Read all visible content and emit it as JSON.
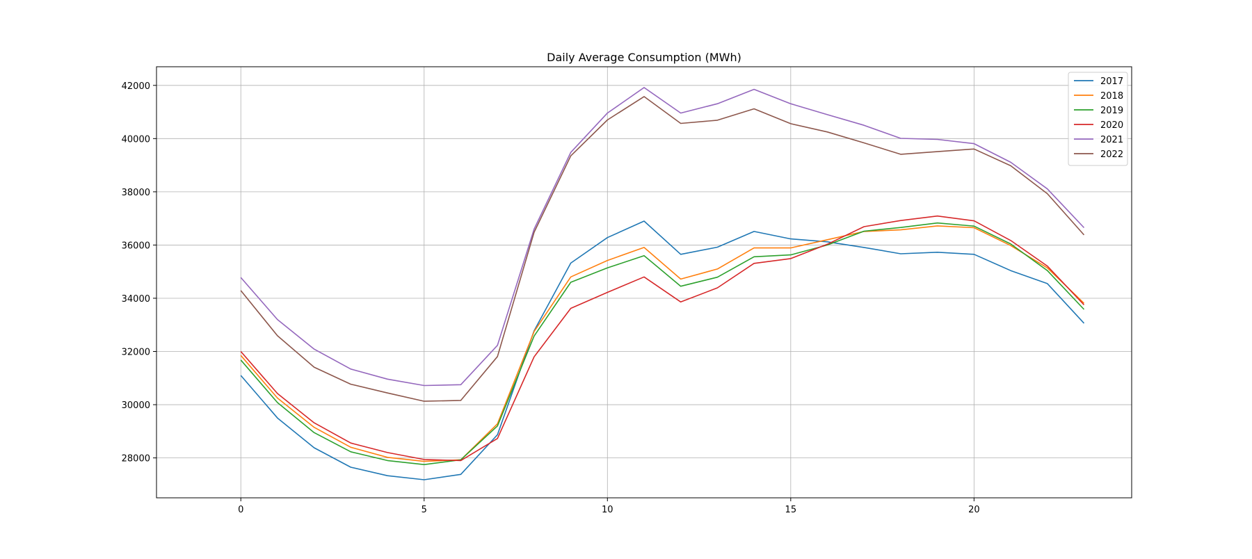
{
  "chart_data": {
    "type": "line",
    "title": "Daily Average Consumption (MWh)",
    "xlabel": "",
    "ylabel": "",
    "x": [
      0,
      1,
      2,
      3,
      4,
      5,
      6,
      7,
      8,
      9,
      10,
      11,
      12,
      13,
      14,
      15,
      16,
      17,
      18,
      19,
      20,
      21,
      22,
      23
    ],
    "xlim": [
      -2.3,
      24.3
    ],
    "ylim": [
      26500,
      42700
    ],
    "xticks": [
      0,
      5,
      10,
      15,
      20
    ],
    "yticks": [
      28000,
      30000,
      32000,
      34000,
      36000,
      38000,
      40000,
      42000
    ],
    "grid": true,
    "legend_position": "top-right",
    "series": [
      {
        "name": "2017",
        "color": "#1f77b4",
        "values": [
          31100,
          29500,
          28380,
          27650,
          27330,
          27180,
          27380,
          28870,
          32780,
          35320,
          36280,
          36900,
          35650,
          35920,
          36510,
          36230,
          36120,
          35910,
          35670,
          35730,
          35650,
          35040,
          34550,
          33060
        ]
      },
      {
        "name": "2018",
        "color": "#ff7f0e",
        "values": [
          31850,
          30250,
          29150,
          28400,
          28020,
          27870,
          27930,
          29280,
          32750,
          34800,
          35420,
          35910,
          34720,
          35100,
          35890,
          35890,
          36200,
          36510,
          36570,
          36720,
          36650,
          35980,
          35140,
          33810
        ]
      },
      {
        "name": "2019",
        "color": "#2ca02c",
        "values": [
          31680,
          30080,
          28950,
          28230,
          27900,
          27750,
          27930,
          29200,
          32580,
          34600,
          35140,
          35600,
          34450,
          34790,
          35560,
          35630,
          36000,
          36520,
          36660,
          36830,
          36710,
          36040,
          35040,
          33580
        ]
      },
      {
        "name": "2020",
        "color": "#d62728",
        "values": [
          32000,
          30420,
          29320,
          28560,
          28200,
          27940,
          27900,
          28730,
          31800,
          33620,
          34220,
          34800,
          33860,
          34390,
          35310,
          35490,
          36030,
          36690,
          36920,
          37090,
          36910,
          36170,
          35210,
          33750
        ]
      },
      {
        "name": "2021",
        "color": "#9467bd",
        "values": [
          34780,
          33200,
          32090,
          31340,
          30960,
          30720,
          30750,
          32230,
          36600,
          39480,
          40960,
          41920,
          40960,
          41310,
          41850,
          41310,
          40900,
          40500,
          40010,
          39970,
          39810,
          39110,
          38110,
          36650
        ]
      },
      {
        "name": "2022",
        "color": "#8c564b",
        "values": [
          34290,
          32590,
          31410,
          30770,
          30440,
          30130,
          30160,
          31810,
          36480,
          39350,
          40700,
          41580,
          40570,
          40690,
          41120,
          40560,
          40250,
          39840,
          39410,
          39510,
          39610,
          38980,
          37930,
          36380
        ]
      }
    ]
  }
}
